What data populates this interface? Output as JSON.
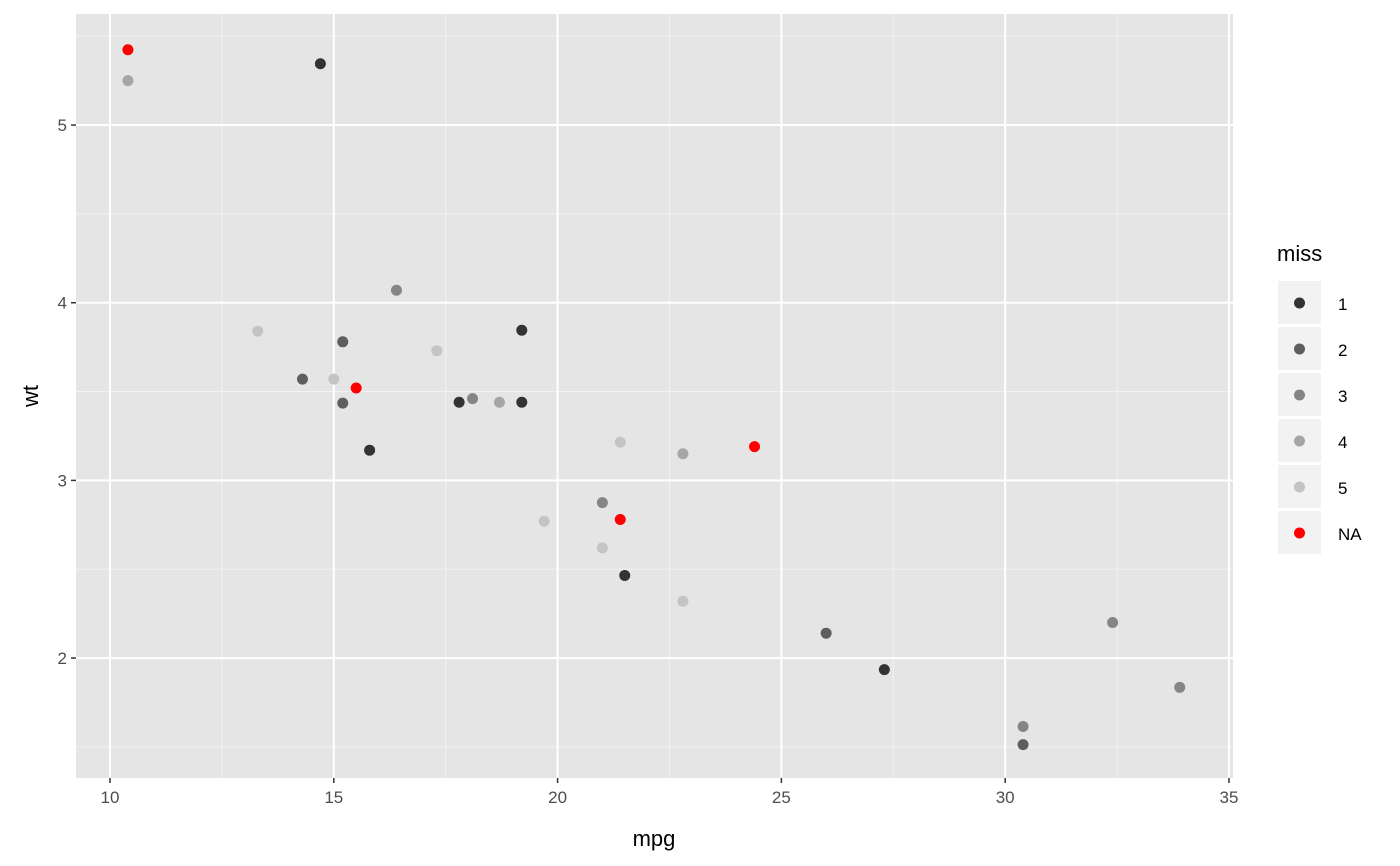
{
  "chart_data": {
    "type": "scatter",
    "title": "",
    "xlabel": "mpg",
    "ylabel": "wt",
    "xlim": [
      9.24,
      35.09
    ],
    "ylim": [
      1.325,
      5.625
    ],
    "xticks": [
      10,
      15,
      20,
      25,
      30,
      35
    ],
    "yticks": [
      2,
      3,
      4,
      5
    ],
    "grid": true,
    "legend": {
      "title": "miss",
      "placement": "right",
      "entries": [
        {
          "label": "1",
          "color": "#333333"
        },
        {
          "label": "2",
          "color": "#5e5e5e"
        },
        {
          "label": "3",
          "color": "#858585"
        },
        {
          "label": "4",
          "color": "#a6a6a6"
        },
        {
          "label": "5",
          "color": "#c4c4c4"
        },
        {
          "label": "NA",
          "color": "#ff0000"
        }
      ]
    },
    "points": [
      {
        "x": 21.0,
        "y": 2.62,
        "miss": "5"
      },
      {
        "x": 21.0,
        "y": 2.875,
        "miss": "3"
      },
      {
        "x": 22.8,
        "y": 2.32,
        "miss": "5"
      },
      {
        "x": 21.4,
        "y": 3.215,
        "miss": "5"
      },
      {
        "x": 18.7,
        "y": 3.44,
        "miss": "4"
      },
      {
        "x": 18.1,
        "y": 3.46,
        "miss": "3"
      },
      {
        "x": 14.3,
        "y": 3.57,
        "miss": "2"
      },
      {
        "x": 24.4,
        "y": 3.19,
        "miss": "NA"
      },
      {
        "x": 22.8,
        "y": 3.15,
        "miss": "4"
      },
      {
        "x": 19.2,
        "y": 3.44,
        "miss": "1"
      },
      {
        "x": 17.8,
        "y": 3.44,
        "miss": "1"
      },
      {
        "x": 16.4,
        "y": 4.07,
        "miss": "3"
      },
      {
        "x": 17.3,
        "y": 3.73,
        "miss": "5"
      },
      {
        "x": 15.2,
        "y": 3.78,
        "miss": "2"
      },
      {
        "x": 10.4,
        "y": 5.25,
        "miss": "4"
      },
      {
        "x": 10.4,
        "y": 5.424,
        "miss": "NA"
      },
      {
        "x": 14.7,
        "y": 5.345,
        "miss": "1"
      },
      {
        "x": 32.4,
        "y": 2.2,
        "miss": "3"
      },
      {
        "x": 30.4,
        "y": 1.615,
        "miss": "3"
      },
      {
        "x": 33.9,
        "y": 1.835,
        "miss": "3"
      },
      {
        "x": 21.5,
        "y": 2.465,
        "miss": "1"
      },
      {
        "x": 15.5,
        "y": 3.52,
        "miss": "NA"
      },
      {
        "x": 15.2,
        "y": 3.435,
        "miss": "2"
      },
      {
        "x": 13.3,
        "y": 3.84,
        "miss": "5"
      },
      {
        "x": 19.2,
        "y": 3.845,
        "miss": "1"
      },
      {
        "x": 27.3,
        "y": 1.935,
        "miss": "1"
      },
      {
        "x": 26.0,
        "y": 2.14,
        "miss": "2"
      },
      {
        "x": 30.4,
        "y": 1.513,
        "miss": "2"
      },
      {
        "x": 15.8,
        "y": 3.17,
        "miss": "1"
      },
      {
        "x": 19.7,
        "y": 2.77,
        "miss": "5"
      },
      {
        "x": 15.0,
        "y": 3.57,
        "miss": "5"
      },
      {
        "x": 21.4,
        "y": 2.78,
        "miss": "NA"
      }
    ]
  }
}
